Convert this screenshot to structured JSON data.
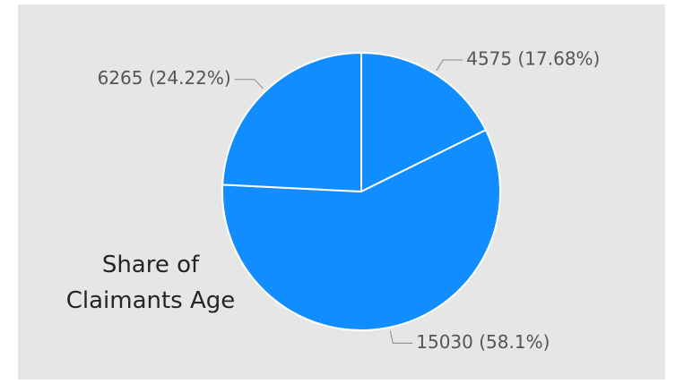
{
  "chart_data": {
    "type": "pie",
    "title": "Share of Claimants Age",
    "values": [
      4575,
      15030,
      6265
    ],
    "value_labels": [
      "4575 (17.68%)",
      "15030 (58.1%)",
      "6265 (24.22%)"
    ],
    "color": "#118dff"
  }
}
